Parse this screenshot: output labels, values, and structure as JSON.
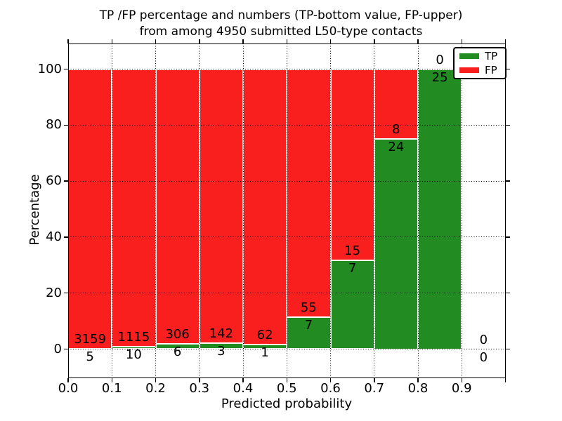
{
  "title": {
    "line1": "TP /FP percentage and numbers (TP-bottom value, FP-upper)",
    "line2": "from among 4950 submitted L50-type contacts"
  },
  "y_axis": {
    "label": "Percentage",
    "ticks": [
      0,
      20,
      40,
      60,
      80,
      100
    ]
  },
  "x_axis": {
    "label": "Predicted probability",
    "tick_labels": [
      "0.0",
      "0.1",
      "0.2",
      "0.3",
      "0.4",
      "0.5",
      "0.6",
      "0.7",
      "0.8",
      "0.9"
    ]
  },
  "legend": {
    "items": [
      {
        "label": "TP",
        "color": "#228B22"
      },
      {
        "label": "FP",
        "color": "#FA1F1F"
      }
    ]
  },
  "colors": {
    "tp_green": "#228B22",
    "fp_red": "#FA1F1F",
    "bar_edge": "#FFFFFF",
    "grid": "#000000",
    "background": "#FFFFFF"
  },
  "chart_data": {
    "type": "bar",
    "stacked": true,
    "title": "TP /FP percentage and numbers (TP-bottom value, FP-upper) from among 4950 submitted L50-type contacts",
    "xlabel": "Predicted probability",
    "ylabel": "Percentage",
    "xlim": [
      0.0,
      1.0
    ],
    "ylim": [
      -10.3,
      109.5
    ],
    "grid": "dotted, both axes, drawn above bars",
    "legend_position": "upper right",
    "bin_width": 0.1,
    "bins": [
      {
        "range": "0.0-0.1",
        "tp": 5,
        "fp": 3159,
        "tp_pct": 0.158
      },
      {
        "range": "0.1-0.2",
        "tp": 10,
        "fp": 1115,
        "tp_pct": 0.889
      },
      {
        "range": "0.2-0.3",
        "tp": 6,
        "fp": 306,
        "tp_pct": 1.923
      },
      {
        "range": "0.3-0.4",
        "tp": 3,
        "fp": 142,
        "tp_pct": 2.069
      },
      {
        "range": "0.4-0.5",
        "tp": 1,
        "fp": 62,
        "tp_pct": 1.587
      },
      {
        "range": "0.5-0.6",
        "tp": 7,
        "fp": 55,
        "tp_pct": 11.29
      },
      {
        "range": "0.6-0.7",
        "tp": 7,
        "fp": 15,
        "tp_pct": 31.818
      },
      {
        "range": "0.7-0.8",
        "tp": 24,
        "fp": 8,
        "tp_pct": 75.0
      },
      {
        "range": "0.8-0.9",
        "tp": 25,
        "fp": 0,
        "tp_pct": 100.0
      },
      {
        "range": "0.9-1.0",
        "tp": 0,
        "fp": 0,
        "tp_pct": null
      }
    ],
    "series": [
      {
        "name": "TP",
        "values": [
          5,
          10,
          6,
          3,
          1,
          7,
          7,
          24,
          25,
          0
        ]
      },
      {
        "name": "FP",
        "values": [
          3159,
          1115,
          306,
          142,
          62,
          55,
          15,
          8,
          0,
          0
        ]
      }
    ]
  }
}
